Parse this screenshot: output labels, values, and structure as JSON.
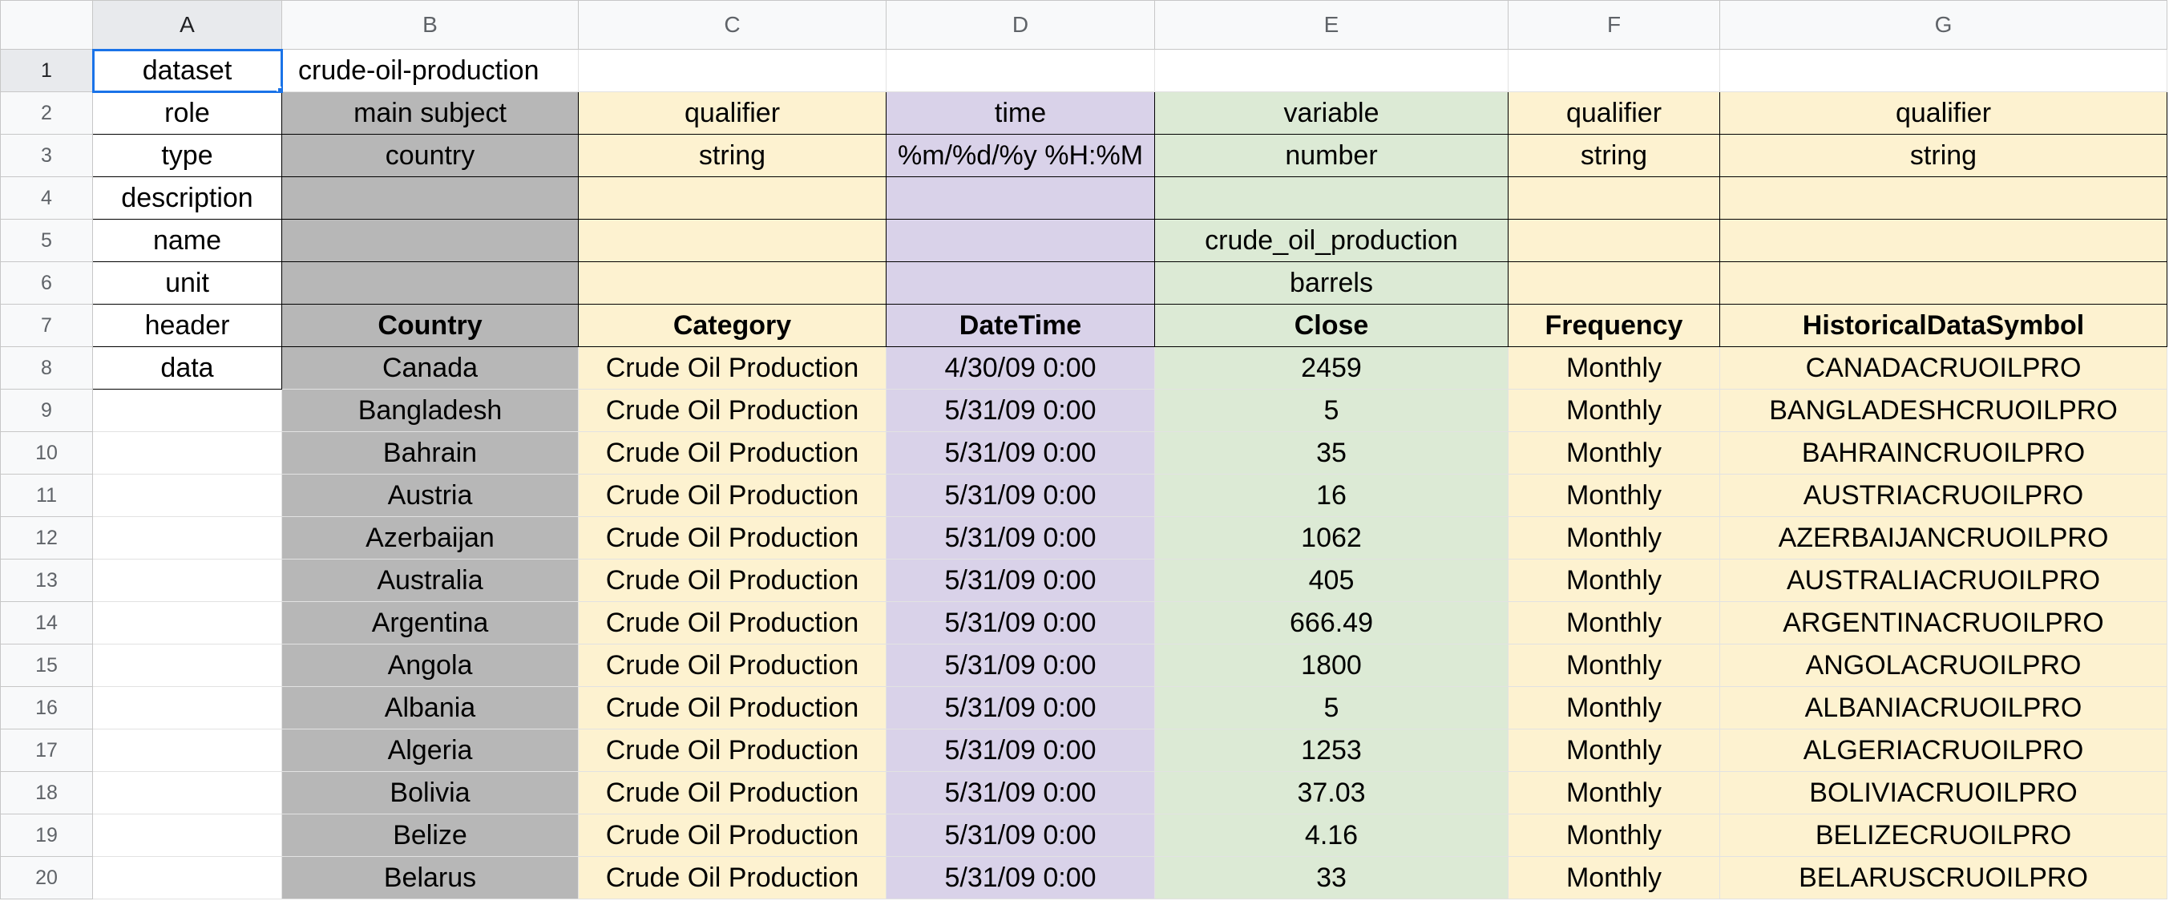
{
  "columns": [
    "A",
    "B",
    "C",
    "D",
    "E",
    "F",
    "G"
  ],
  "meta_rows": [
    {
      "row": "1",
      "a": "dataset",
      "b": "crude-oil-production",
      "c": "",
      "d": "",
      "e": "",
      "f": "",
      "g": ""
    },
    {
      "row": "2",
      "a": "role",
      "b": "main subject",
      "c": "qualifier",
      "d": "time",
      "e": "variable",
      "f": "qualifier",
      "g": "qualifier"
    },
    {
      "row": "3",
      "a": "type",
      "b": "country",
      "c": "string",
      "d": "%m/%d/%y %H:%M",
      "e": "number",
      "f": "string",
      "g": "string"
    },
    {
      "row": "4",
      "a": "description",
      "b": "",
      "c": "",
      "d": "",
      "e": "",
      "f": "",
      "g": ""
    },
    {
      "row": "5",
      "a": "name",
      "b": "",
      "c": "",
      "d": "",
      "e": "crude_oil_production",
      "f": "",
      "g": ""
    },
    {
      "row": "6",
      "a": "unit",
      "b": "",
      "c": "",
      "d": "",
      "e": "barrels",
      "f": "",
      "g": ""
    },
    {
      "row": "7",
      "a": "header",
      "b": "Country",
      "c": "Category",
      "d": "DateTime",
      "e": "Close",
      "f": "Frequency",
      "g": "HistoricalDataSymbol"
    }
  ],
  "data_rows": [
    {
      "row": "8",
      "a": "data",
      "b": "Canada",
      "c": "Crude Oil Production",
      "d": "4/30/09 0:00",
      "e": "2459",
      "f": "Monthly",
      "g": "CANADACRUOILPRO"
    },
    {
      "row": "9",
      "a": "",
      "b": "Bangladesh",
      "c": "Crude Oil Production",
      "d": "5/31/09 0:00",
      "e": "5",
      "f": "Monthly",
      "g": "BANGLADESHCRUOILPRO"
    },
    {
      "row": "10",
      "a": "",
      "b": "Bahrain",
      "c": "Crude Oil Production",
      "d": "5/31/09 0:00",
      "e": "35",
      "f": "Monthly",
      "g": "BAHRAINCRUOILPRO"
    },
    {
      "row": "11",
      "a": "",
      "b": "Austria",
      "c": "Crude Oil Production",
      "d": "5/31/09 0:00",
      "e": "16",
      "f": "Monthly",
      "g": "AUSTRIACRUOILPRO"
    },
    {
      "row": "12",
      "a": "",
      "b": "Azerbaijan",
      "c": "Crude Oil Production",
      "d": "5/31/09 0:00",
      "e": "1062",
      "f": "Monthly",
      "g": "AZERBAIJANCRUOILPRO"
    },
    {
      "row": "13",
      "a": "",
      "b": "Australia",
      "c": "Crude Oil Production",
      "d": "5/31/09 0:00",
      "e": "405",
      "f": "Monthly",
      "g": "AUSTRALIACRUOILPRO"
    },
    {
      "row": "14",
      "a": "",
      "b": "Argentina",
      "c": "Crude Oil Production",
      "d": "5/31/09 0:00",
      "e": "666.49",
      "f": "Monthly",
      "g": "ARGENTINACRUOILPRO"
    },
    {
      "row": "15",
      "a": "",
      "b": "Angola",
      "c": "Crude Oil Production",
      "d": "5/31/09 0:00",
      "e": "1800",
      "f": "Monthly",
      "g": "ANGOLACRUOILPRO"
    },
    {
      "row": "16",
      "a": "",
      "b": "Albania",
      "c": "Crude Oil Production",
      "d": "5/31/09 0:00",
      "e": "5",
      "f": "Monthly",
      "g": "ALBANIACRUOILPRO"
    },
    {
      "row": "17",
      "a": "",
      "b": "Algeria",
      "c": "Crude Oil Production",
      "d": "5/31/09 0:00",
      "e": "1253",
      "f": "Monthly",
      "g": "ALGERIACRUOILPRO"
    },
    {
      "row": "18",
      "a": "",
      "b": "Bolivia",
      "c": "Crude Oil Production",
      "d": "5/31/09 0:00",
      "e": "37.03",
      "f": "Monthly",
      "g": "BOLIVIACRUOILPRO"
    },
    {
      "row": "19",
      "a": "",
      "b": "Belize",
      "c": "Crude Oil Production",
      "d": "5/31/09 0:00",
      "e": "4.16",
      "f": "Monthly",
      "g": "BELIZECRUOILPRO"
    },
    {
      "row": "20",
      "a": "",
      "b": "Belarus",
      "c": "Crude Oil Production",
      "d": "5/31/09 0:00",
      "e": "33",
      "f": "Monthly",
      "g": "BELARUSCRUOILPRO"
    }
  ],
  "colors": {
    "main_subject": "#b7b7b7",
    "qualifier": "#fdf2d0",
    "time": "#d9d2e9",
    "variable": "#dcead5",
    "selection": "#1a73e8"
  },
  "selected_cell": "A1"
}
